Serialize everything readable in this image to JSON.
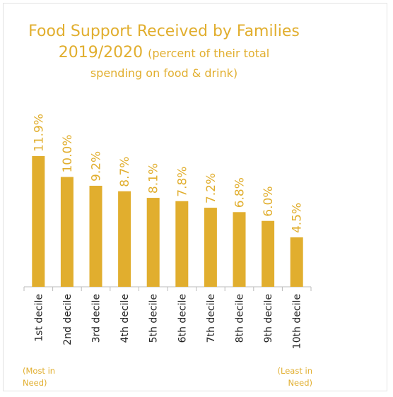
{
  "title_line1": "Food Support Received by Families",
  "title_line2_main": "2019/2020",
  "title_line2_sub": "(percent of their total",
  "title_line3": "spending on food & drink)",
  "note_left": [
    "(Most in",
    "Need)"
  ],
  "note_right": [
    "(Least in",
    "Need)"
  ],
  "colors": {
    "bar": "#E1AE2E",
    "text": "#E1AE2E",
    "axis": "#bbbbbb"
  },
  "chart_data": {
    "type": "bar",
    "title": "Food Support Received by Families 2019/2020 (percent of their total spending on food & drink)",
    "categories": [
      "1st decile",
      "2nd decile",
      "3rd decile",
      "4th decile",
      "5th decile",
      "6th decile",
      "7th decile",
      "8th decile",
      "9th decile",
      "10th decile"
    ],
    "values": [
      11.9,
      10.0,
      9.2,
      8.7,
      8.1,
      7.8,
      7.2,
      6.8,
      6.0,
      4.5
    ],
    "labels": [
      "11.9%",
      "10.0%",
      "9.2%",
      "8.7%",
      "8.1%",
      "7.8%",
      "7.2%",
      "6.8%",
      "6.0%",
      "4.5%"
    ],
    "grid": false
  }
}
